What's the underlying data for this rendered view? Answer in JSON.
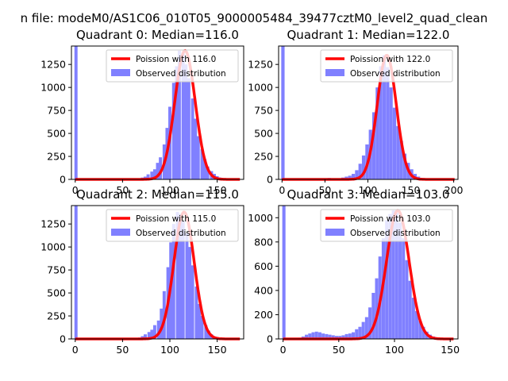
{
  "suptitle": "n file: modeM0/AS1C06_010T05_9000005484_39477cztM0_level2_quad_clean",
  "colors": {
    "poisson": "#ff0000",
    "observed": "#8080ff",
    "axes": "#000000"
  },
  "chart_data": [
    {
      "type": "bar",
      "title": "Quadrant 0: Median=116.0",
      "legend": [
        "Poission with 116.0",
        "Observed distribution"
      ],
      "legend_position": "top-right",
      "xlim": [
        -4,
        178
      ],
      "ylim": [
        0,
        1450
      ],
      "xticks": [
        0,
        50,
        100,
        150
      ],
      "yticks": [
        0,
        250,
        500,
        750,
        1000,
        1250
      ],
      "poisson_mean": 116,
      "bin_width": 3.3,
      "zero_bin": 1450,
      "x": [
        71,
        74,
        77,
        81,
        84,
        87,
        90,
        94,
        97,
        100,
        104,
        107,
        110,
        114,
        117,
        120,
        124,
        127,
        130,
        134,
        137,
        140,
        144,
        147,
        150,
        153,
        157,
        160,
        163
      ],
      "values": [
        20,
        30,
        55,
        85,
        110,
        180,
        240,
        380,
        560,
        790,
        1050,
        1230,
        1400,
        1380,
        1250,
        1100,
        880,
        660,
        470,
        330,
        220,
        140,
        90,
        60,
        35,
        20,
        10,
        5,
        2
      ]
    },
    {
      "type": "bar",
      "title": "Quadrant 1: Median=122.0",
      "legend": [
        "Poission with 122.0",
        "Observed distribution"
      ],
      "legend_position": "top-right",
      "xlim": [
        -4,
        205
      ],
      "ylim": [
        0,
        1450
      ],
      "xticks": [
        0,
        50,
        100,
        150,
        200
      ],
      "yticks": [
        0,
        250,
        500,
        750,
        1000,
        1250
      ],
      "poisson_mean": 122,
      "bin_width": 3.9,
      "zero_bin": 1450,
      "x": [
        55,
        71,
        75,
        79,
        83,
        87,
        91,
        95,
        99,
        103,
        107,
        111,
        115,
        119,
        123,
        127,
        131,
        135,
        139,
        143,
        147,
        151,
        155,
        159,
        163,
        167
      ],
      "values": [
        15,
        20,
        30,
        40,
        60,
        100,
        170,
        260,
        380,
        540,
        730,
        1000,
        1230,
        1350,
        1220,
        1000,
        780,
        580,
        420,
        280,
        180,
        110,
        60,
        30,
        15,
        5
      ]
    },
    {
      "type": "bar",
      "title": "Quadrant 2: Median=115.0",
      "legend": [
        "Poission with 115.0",
        "Observed distribution"
      ],
      "legend_position": "top-right",
      "xlim": [
        -4,
        178
      ],
      "ylim": [
        0,
        1450
      ],
      "xticks": [
        0,
        50,
        100,
        150
      ],
      "yticks": [
        0,
        250,
        500,
        750,
        1000,
        1250
      ],
      "poisson_mean": 115,
      "bin_width": 3.3,
      "zero_bin": 1450,
      "x": [
        68,
        71,
        74,
        78,
        81,
        84,
        88,
        91,
        94,
        98,
        101,
        104,
        108,
        111,
        114,
        118,
        121,
        124,
        128,
        131,
        134,
        138,
        141,
        144,
        148,
        151
      ],
      "values": [
        15,
        30,
        50,
        75,
        100,
        150,
        200,
        330,
        520,
        780,
        1050,
        1250,
        1380,
        1360,
        1280,
        1150,
        1000,
        800,
        570,
        380,
        250,
        150,
        90,
        50,
        25,
        10
      ]
    },
    {
      "type": "bar",
      "title": "Quadrant 3: Median=103.0",
      "legend": [
        "Poission with 103.0",
        "Observed distribution"
      ],
      "legend_position": "top-right",
      "xlim": [
        -4,
        157
      ],
      "ylim": [
        0,
        1100
      ],
      "xticks": [
        0,
        50,
        100,
        150
      ],
      "yticks": [
        0,
        200,
        400,
        600,
        800,
        1000
      ],
      "poisson_mean": 103,
      "bin_width": 2.9,
      "zero_bin": 1100,
      "x": [
        15,
        18,
        21,
        24,
        27,
        30,
        33,
        36,
        39,
        42,
        45,
        48,
        51,
        54,
        57,
        60,
        63,
        66,
        69,
        72,
        75,
        78,
        81,
        84,
        87,
        90,
        93,
        96,
        99,
        102,
        105,
        108,
        111,
        114,
        117,
        120,
        123,
        126,
        129,
        132,
        135,
        138,
        141,
        144,
        147
      ],
      "values": [
        10,
        20,
        35,
        45,
        55,
        60,
        55,
        45,
        40,
        35,
        30,
        25,
        25,
        30,
        40,
        45,
        55,
        80,
        100,
        140,
        180,
        260,
        380,
        500,
        680,
        830,
        980,
        1030,
        1060,
        1040,
        960,
        830,
        650,
        480,
        340,
        230,
        150,
        100,
        60,
        35,
        20,
        10,
        5,
        3,
        2
      ]
    }
  ]
}
